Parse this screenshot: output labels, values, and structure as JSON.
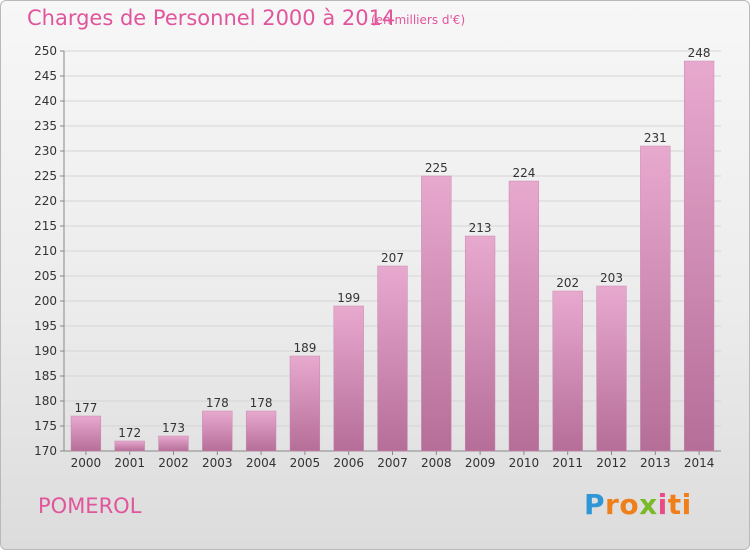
{
  "header": {
    "title": "Charges de Personnel 2000 à 2014",
    "subtitle": "(en milliers d'€)"
  },
  "footer": {
    "town": "POMEROL",
    "logo": "Proxiti"
  },
  "chart_data": {
    "type": "bar",
    "title": "Charges de Personnel 2000 à 2014",
    "subtitle": "(en milliers d'€)",
    "categories": [
      "2000",
      "2001",
      "2002",
      "2003",
      "2004",
      "2005",
      "2006",
      "2007",
      "2008",
      "2009",
      "2010",
      "2011",
      "2012",
      "2013",
      "2014"
    ],
    "values": [
      177,
      172,
      173,
      178,
      178,
      189,
      199,
      207,
      225,
      213,
      224,
      202,
      203,
      231,
      248
    ],
    "ylim": [
      170,
      250
    ],
    "yticks": [
      170,
      175,
      180,
      185,
      190,
      195,
      200,
      205,
      210,
      215,
      220,
      225,
      230,
      235,
      240,
      245,
      250
    ],
    "grid": true,
    "xlabel": "",
    "ylabel": "",
    "colors": {
      "bar_top": "#e8a9cf",
      "bar_bottom": "#b56e98",
      "grid": "#d5d5d5",
      "text": "#e0559b"
    }
  }
}
